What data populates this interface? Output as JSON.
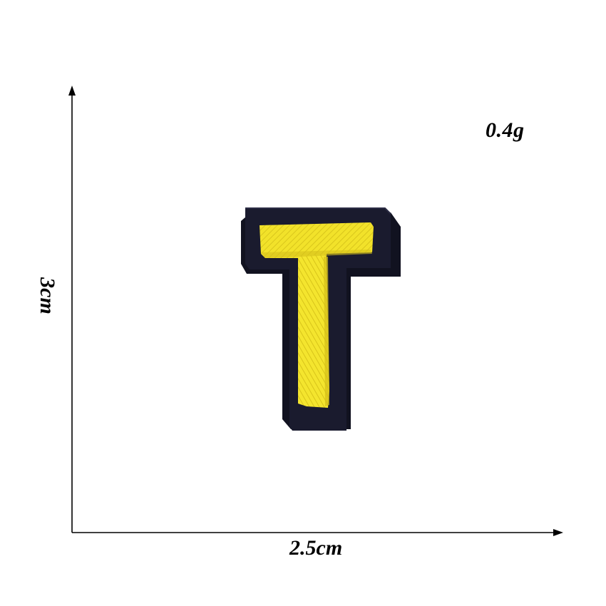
{
  "labels": {
    "weight": "0.4g",
    "width": "2.5cm",
    "height": "3cm"
  },
  "patch": {
    "letter": "T",
    "border_color": "#1a1b2e",
    "thread_color": "#f2e22a"
  },
  "icons": {
    "vertical_axis": "vertical-arrow",
    "horizontal_axis": "horizontal-arrow"
  }
}
